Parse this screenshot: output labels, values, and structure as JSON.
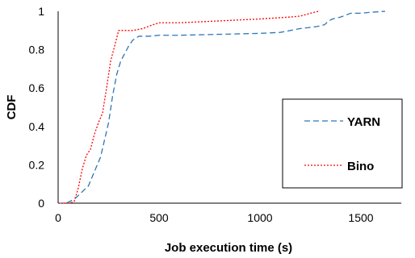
{
  "chart_data": {
    "type": "line",
    "title": "",
    "xlabel": "Job execution time (s)",
    "ylabel": "CDF",
    "xlim": [
      0,
      1700
    ],
    "ylim": [
      0,
      1
    ],
    "x_ticks": [
      0,
      500,
      1000,
      1500
    ],
    "y_ticks": [
      0,
      0.2,
      0.4,
      0.6,
      0.8,
      1
    ],
    "x_tick_labels": [
      "0",
      "500",
      "1000",
      "1500"
    ],
    "y_tick_labels": [
      "0",
      "0.2",
      "0.4",
      "0.6",
      "0.8",
      "1"
    ],
    "grid": false,
    "legend_position": "right",
    "series": [
      {
        "name": "YARN",
        "color": "#2e75b6",
        "style": "dashed",
        "x": [
          0,
          40,
          60,
          90,
          110,
          130,
          150,
          170,
          190,
          210,
          230,
          250,
          270,
          290,
          310,
          330,
          350,
          370,
          400,
          450,
          500,
          600,
          800,
          1000,
          1100,
          1150,
          1200,
          1280,
          1320,
          1340,
          1360,
          1400,
          1450,
          1500,
          1550,
          1620
        ],
        "y": [
          0,
          0,
          0.01,
          0.03,
          0.05,
          0.07,
          0.09,
          0.14,
          0.19,
          0.24,
          0.33,
          0.42,
          0.56,
          0.67,
          0.74,
          0.78,
          0.82,
          0.85,
          0.87,
          0.87,
          0.875,
          0.875,
          0.88,
          0.885,
          0.89,
          0.9,
          0.91,
          0.92,
          0.93,
          0.95,
          0.96,
          0.97,
          0.99,
          0.99,
          0.995,
          1.0
        ]
      },
      {
        "name": "Bino",
        "color": "#ff0000",
        "style": "dotted",
        "x": [
          0,
          60,
          80,
          100,
          120,
          140,
          160,
          180,
          200,
          220,
          240,
          260,
          280,
          300,
          330,
          370,
          420,
          470,
          500,
          600,
          800,
          1000,
          1150,
          1200,
          1250,
          1290
        ],
        "y": [
          0,
          0,
          0.01,
          0.08,
          0.18,
          0.25,
          0.28,
          0.36,
          0.42,
          0.47,
          0.6,
          0.74,
          0.82,
          0.9,
          0.9,
          0.9,
          0.91,
          0.93,
          0.94,
          0.94,
          0.95,
          0.96,
          0.97,
          0.975,
          0.99,
          1.0
        ]
      }
    ]
  }
}
